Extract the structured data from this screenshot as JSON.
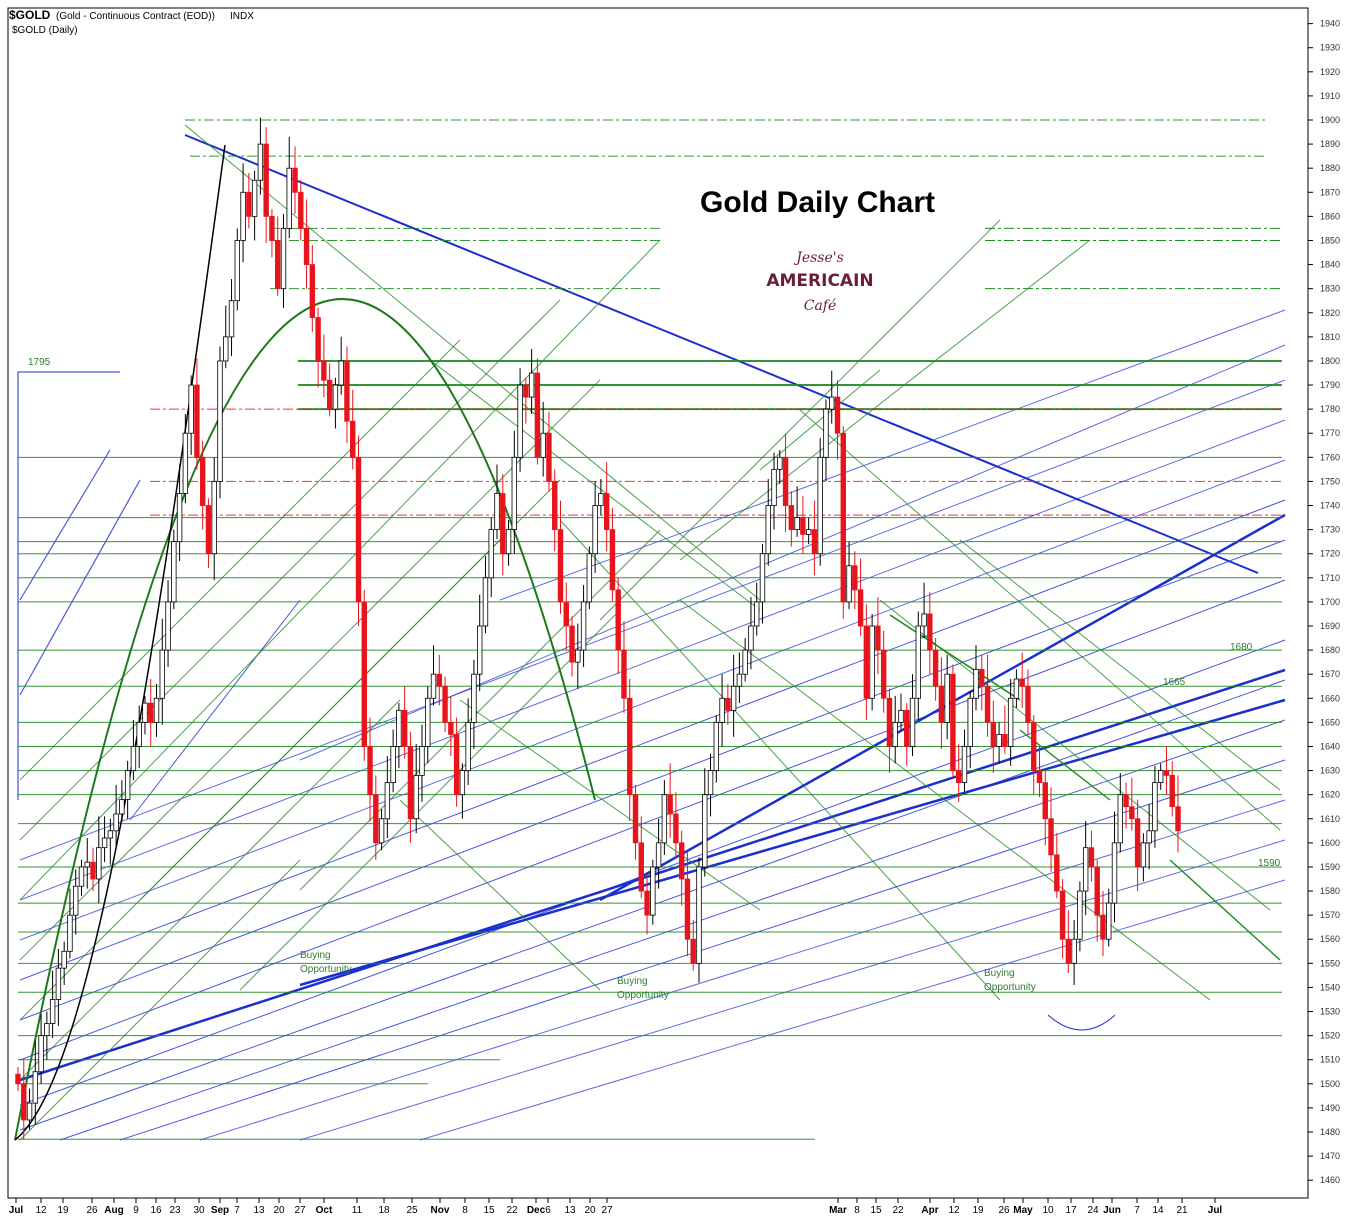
{
  "header": {
    "symbol": "$GOLD",
    "description": "(Gold - Continuous Contract (EOD))",
    "exchange": "INDX",
    "series_label": "$GOLD (Daily)"
  },
  "logo": {
    "line1": "Jesse's",
    "line2": "AMERICAIN",
    "line3": "Café"
  },
  "colors": {
    "up_candle": "#ffffff",
    "down_candle": "#e8141c",
    "green_line": "#1f8a1f",
    "blue_line": "#1b2fd0",
    "red_line": "#e21a1a"
  },
  "chart_data": {
    "type": "candlestick",
    "title": "Gold Daily Chart",
    "ylim": [
      1455,
      1945
    ],
    "y_ticks": [
      1460,
      1470,
      1480,
      1490,
      1500,
      1510,
      1520,
      1530,
      1540,
      1550,
      1560,
      1570,
      1580,
      1590,
      1600,
      1610,
      1620,
      1630,
      1640,
      1650,
      1660,
      1670,
      1680,
      1690,
      1700,
      1710,
      1720,
      1730,
      1740,
      1750,
      1760,
      1770,
      1780,
      1790,
      1800,
      1810,
      1820,
      1830,
      1840,
      1850,
      1860,
      1870,
      1880,
      1890,
      1900,
      1910,
      1920,
      1930,
      1940
    ],
    "x_ticks": [
      "Jul",
      "12",
      "19",
      "26",
      "Aug",
      "9",
      "16",
      "23",
      "30",
      "Sep",
      "7",
      "13",
      "20",
      "27",
      "Oct",
      "11",
      "18",
      "25",
      "Nov",
      "8",
      "15",
      "22",
      "Dec",
      "6",
      "13",
      "20",
      "27",
      "Mar",
      "8",
      "15",
      "22",
      "Apr",
      "12",
      "19",
      "26",
      "May",
      "10",
      "17",
      "24",
      "Jun",
      "7",
      "14",
      "21",
      "Jul"
    ],
    "x_ticks_bold": [
      "Jul",
      "Aug",
      "Sep",
      "Oct",
      "Nov",
      "Dec",
      "Mar",
      "Apr",
      "May",
      "Jun"
    ],
    "close": [
      1500,
      1485,
      1492,
      1505,
      1520,
      1525,
      1535,
      1548,
      1555,
      1570,
      1582,
      1590,
      1592,
      1585,
      1598,
      1602,
      1605,
      1612,
      1618,
      1630,
      1640,
      1650,
      1658,
      1650,
      1660,
      1680,
      1700,
      1725,
      1745,
      1770,
      1790,
      1760,
      1740,
      1720,
      1750,
      1800,
      1810,
      1825,
      1850,
      1870,
      1860,
      1875,
      1890,
      1860,
      1850,
      1830,
      1855,
      1880,
      1870,
      1855,
      1840,
      1818,
      1800,
      1792,
      1780,
      1790,
      1800,
      1775,
      1760,
      1700,
      1640,
      1620,
      1600,
      1610,
      1625,
      1640,
      1655,
      1640,
      1610,
      1628,
      1640,
      1660,
      1670,
      1665,
      1650,
      1645,
      1620,
      1630,
      1650,
      1670,
      1690,
      1710,
      1730,
      1745,
      1720,
      1730,
      1760,
      1790,
      1785,
      1795,
      1760,
      1770,
      1750,
      1730,
      1700,
      1690,
      1675,
      1680,
      1700,
      1720,
      1740,
      1745,
      1730,
      1705,
      1680,
      1660,
      1620,
      1600,
      1580,
      1570,
      1590,
      1600,
      1620,
      1612,
      1600,
      1585,
      1560,
      1550,
      1590,
      1620,
      1630,
      1650,
      1660,
      1655,
      1665,
      1670,
      1680,
      1690,
      1700,
      1720,
      1740,
      1755,
      1760,
      1740,
      1730,
      1735,
      1728,
      1730,
      1720,
      1760,
      1780,
      1785,
      1770,
      1700,
      1715,
      1705,
      1690,
      1660,
      1690,
      1680,
      1660,
      1640,
      1650,
      1655,
      1640,
      1660,
      1690,
      1695,
      1680,
      1665,
      1650,
      1670,
      1630,
      1625,
      1640,
      1660,
      1672,
      1665,
      1650,
      1640,
      1645,
      1640,
      1660,
      1668,
      1665,
      1650,
      1630,
      1625,
      1610,
      1595,
      1580,
      1560,
      1550,
      1560,
      1580,
      1598,
      1590,
      1570,
      1560,
      1575,
      1600,
      1620,
      1615,
      1610,
      1590,
      1600,
      1605,
      1625,
      1630,
      1628,
      1615,
      1605
    ],
    "buying_opportunity": [
      {
        "label": "Buying Opportunity"
      },
      {
        "label": "Buying Opportunity"
      },
      {
        "label": "Buying Opportunity"
      }
    ],
    "level_labels": [
      {
        "text": "1795",
        "value": 1795
      },
      {
        "text": "1680",
        "value": 1680
      },
      {
        "text": "1665",
        "value": 1665
      },
      {
        "text": "1590",
        "value": 1590
      }
    ],
    "green_levels": [
      1900,
      1885,
      1855,
      1850,
      1830,
      1800,
      1790,
      1780,
      1760,
      1735,
      1725,
      1720,
      1710,
      1700,
      1680,
      1665,
      1650,
      1640,
      1630,
      1620,
      1608,
      1590,
      1575,
      1563,
      1550,
      1538,
      1520,
      1510,
      1500,
      1477
    ],
    "red_levels": [
      1780,
      1750,
      1736
    ],
    "legend_position": "none",
    "grid": false
  }
}
